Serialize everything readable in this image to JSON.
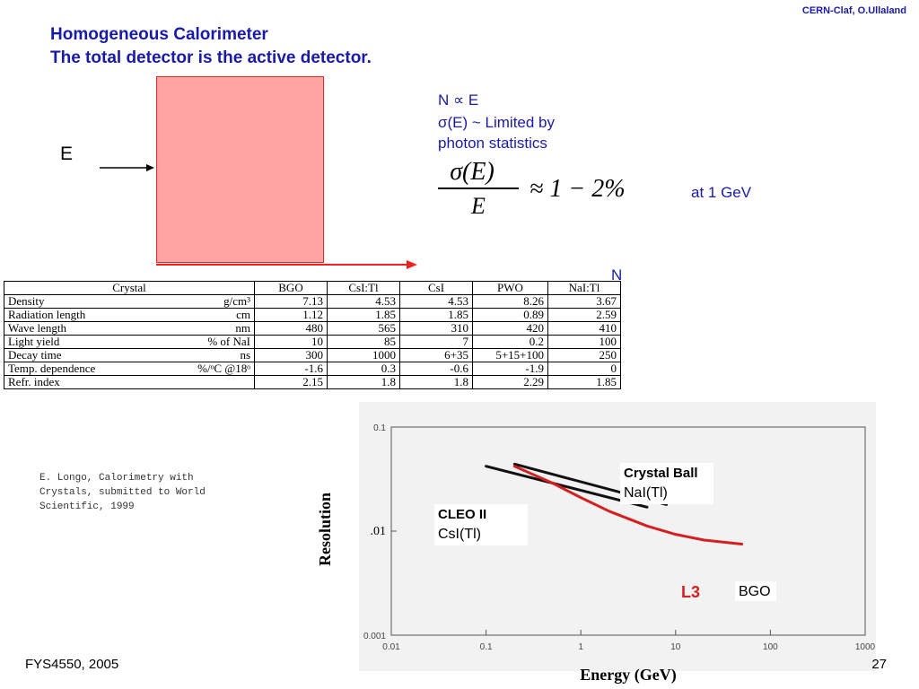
{
  "header": {
    "credit": "CERN-Claf, O.Ullaland",
    "title_line1": "Homogeneous Calorimeter",
    "title_line2": "The total detector is the active detector."
  },
  "diagram": {
    "input_label": "E",
    "output_label": "N"
  },
  "notes": {
    "line1": "N ∝ E",
    "line2": "σ(E) ~ Limited by",
    "line3": "photon statistics",
    "formula_numerator": "σ(E)",
    "formula_denominator": "E",
    "formula_rhs": "≈ 1 − 2%",
    "formula_suffix": "at 1 GeV"
  },
  "table": {
    "headers": [
      "Crystal",
      "BGO",
      "CsI:Tl",
      "CsI",
      "PWO",
      "NaI:Tl"
    ],
    "rows": [
      {
        "name": "Density",
        "unit": "g/cm³",
        "values": [
          "7.13",
          "4.53",
          "4.53",
          "8.26",
          "3.67"
        ]
      },
      {
        "name": "Radiation length",
        "unit": "cm",
        "values": [
          "1.12",
          "1.85",
          "1.85",
          "0.89",
          "2.59"
        ]
      },
      {
        "name": "Wave length",
        "unit": "nm",
        "values": [
          "480",
          "565",
          "310",
          "420",
          "410"
        ]
      },
      {
        "name": "Light yield",
        "unit": "% of NaI",
        "values": [
          "10",
          "85",
          "7",
          "0.2",
          "100"
        ]
      },
      {
        "name": "Decay time",
        "unit": "ns",
        "values": [
          "300",
          "1000",
          "6+35",
          "5+15+100",
          "250"
        ]
      },
      {
        "name": "Temp. dependence",
        "unit": "%/ᵒC   @18ᵒ",
        "values": [
          "-1.6",
          "0.3",
          "-0.6",
          "-1.9",
          "0"
        ]
      },
      {
        "name": "Refr. index",
        "unit": "",
        "values": [
          "2.15",
          "1.8",
          "1.8",
          "2.29",
          "1.85"
        ]
      }
    ]
  },
  "citation": {
    "line1": "E. Longo, Calorimetry with",
    "line2": "Crystals, submitted to World",
    "line3": "Scientific, 1999"
  },
  "chart_data": {
    "type": "line",
    "xlabel": "Energy (GeV)",
    "ylabel": "Resolution",
    "x_scale": "log",
    "y_scale": "log",
    "xlim": [
      0.01,
      1000
    ],
    "ylim": [
      0.001,
      0.1
    ],
    "x_ticks": [
      "0.01",
      "0.1",
      "1",
      "10",
      "100",
      "1000"
    ],
    "y_ticks": [
      "0.1",
      ".01",
      "0.001"
    ],
    "series": [
      {
        "name": "Crystal Ball NaI(Tl)",
        "color": "#111111",
        "x": [
          0.2,
          8
        ],
        "y": [
          0.044,
          0.018
        ]
      },
      {
        "name": "CLEO II CsI(Tl)",
        "color": "#111111",
        "x": [
          0.1,
          5
        ],
        "y": [
          0.042,
          0.017
        ]
      },
      {
        "name": "L3 BGO",
        "color": "#d42020",
        "x": [
          0.2,
          0.5,
          1,
          2,
          5,
          10,
          20,
          50
        ],
        "y": [
          0.042,
          0.029,
          0.021,
          0.0155,
          0.0112,
          0.0093,
          0.0082,
          0.0075
        ]
      }
    ],
    "annotations": [
      {
        "text": "Crystal Ball",
        "sub": "NaI(Tl)"
      },
      {
        "text": "CLEO II",
        "sub": "CsI(Tl)"
      },
      {
        "text": "L3",
        "sub": "BGO"
      }
    ],
    "grid": false
  },
  "footer": {
    "left": "FYS4550, 2005",
    "page": "27"
  }
}
